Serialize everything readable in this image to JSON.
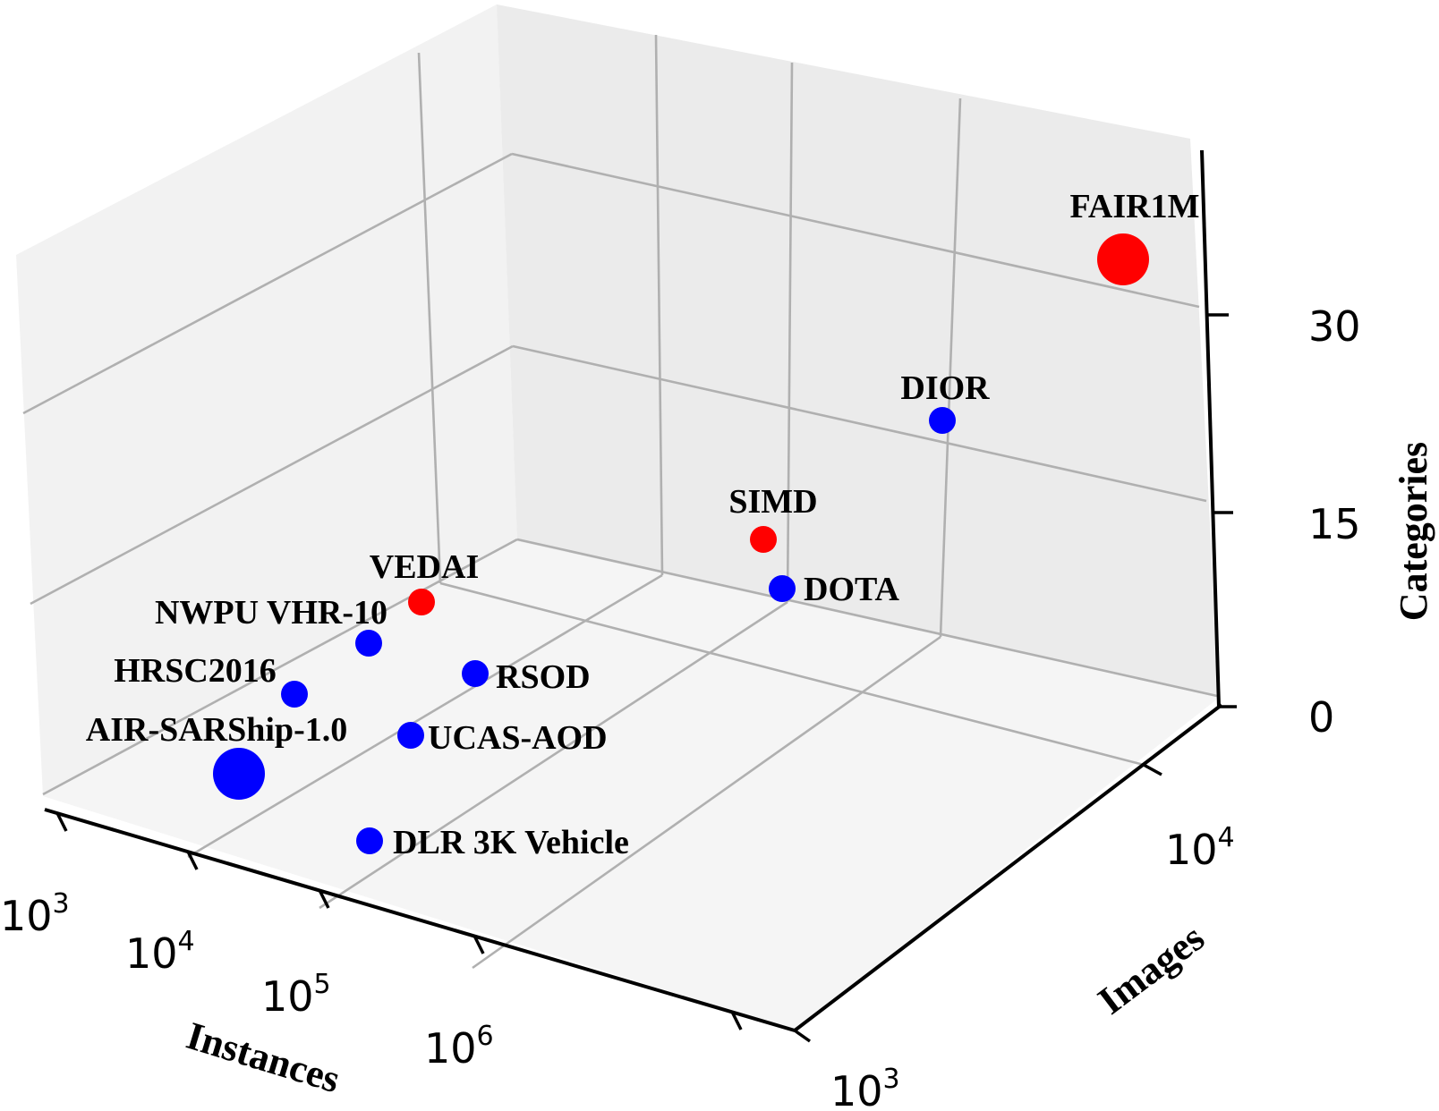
{
  "chart_data": {
    "type": "scatter",
    "projection": "3d",
    "xlabel": "Instances",
    "ylabel": "Images",
    "zlabel": "Categories",
    "x_scale": "log",
    "y_scale": "log",
    "z_scale": "linear",
    "x_ticks": [
      {
        "base": "10",
        "exp": "3"
      },
      {
        "base": "10",
        "exp": "4"
      },
      {
        "base": "10",
        "exp": "5"
      },
      {
        "base": "10",
        "exp": "6"
      }
    ],
    "y_ticks": [
      {
        "base": "10",
        "exp": "3"
      },
      {
        "base": "10",
        "exp": "4"
      }
    ],
    "z_ticks": [
      "0",
      "15",
      "30"
    ],
    "series_colors": {
      "ours": "#ff0000",
      "others": "#0000ff"
    },
    "points": [
      {
        "name": "FAIR1M",
        "color": "#ff0000",
        "relative_size": 3
      },
      {
        "name": "DIOR",
        "color": "#0000ff",
        "relative_size": 1
      },
      {
        "name": "SIMD",
        "color": "#ff0000",
        "relative_size": 1
      },
      {
        "name": "DOTA",
        "color": "#0000ff",
        "relative_size": 1
      },
      {
        "name": "VEDAI",
        "color": "#ff0000",
        "relative_size": 1
      },
      {
        "name": "NWPU VHR-10",
        "color": "#0000ff",
        "relative_size": 1
      },
      {
        "name": "RSOD",
        "color": "#0000ff",
        "relative_size": 1
      },
      {
        "name": "HRSC2016",
        "color": "#0000ff",
        "relative_size": 1
      },
      {
        "name": "UCAS-AOD",
        "color": "#0000ff",
        "relative_size": 1
      },
      {
        "name": "AIR-SARShip-1.0",
        "color": "#0000ff",
        "relative_size": 3
      },
      {
        "name": "DLR 3K Vehicle",
        "color": "#0000ff",
        "relative_size": 1
      }
    ]
  }
}
